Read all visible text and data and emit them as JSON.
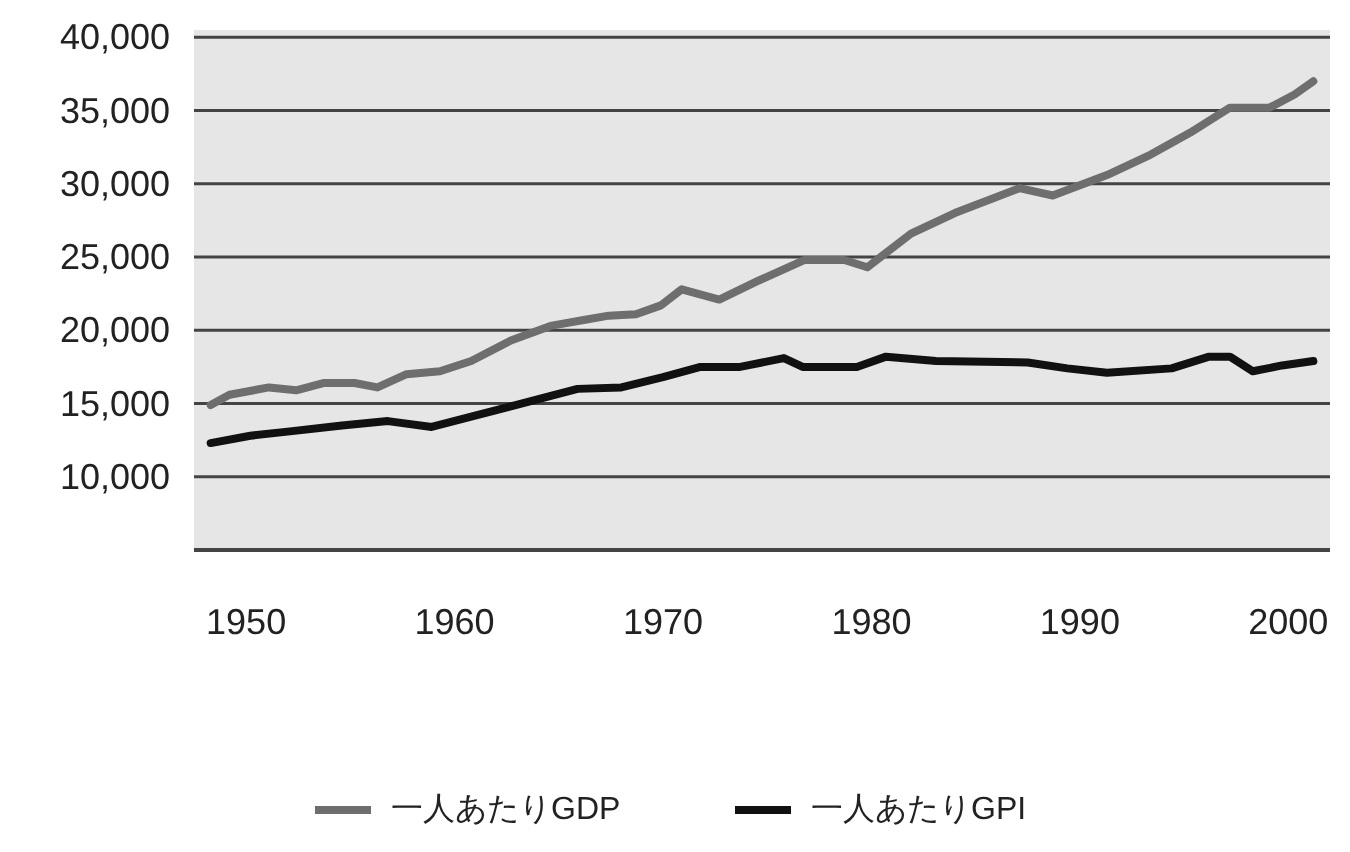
{
  "chart_data": {
    "type": "line",
    "xlim": [
      1947.5,
      2002
    ],
    "xticks": [
      1950,
      1960,
      1970,
      1980,
      1990,
      2000
    ],
    "ylim": [
      5000,
      40500
    ],
    "yticks": [
      {
        "value": 40000,
        "label": "40,000"
      },
      {
        "value": 35000,
        "label": "35,000"
      },
      {
        "value": 30000,
        "label": "30,000"
      },
      {
        "value": 25000,
        "label": "25,000"
      },
      {
        "value": 20000,
        "label": "20,000"
      },
      {
        "value": 15000,
        "label": "15,000"
      },
      {
        "value": 10000,
        "label": "10,000"
      }
    ],
    "grid": "y",
    "legend": "bottom",
    "marker": "none",
    "line_style": "solid",
    "series": [
      {
        "name": "一人あたりGDP",
        "color": "#6e6e6e",
        "x": [
          1948.3,
          1949.2,
          1951.1,
          1952.4,
          1953.7,
          1955.2,
          1956.3,
          1957.7,
          1959.3,
          1960.8,
          1962.7,
          1964.6,
          1966.2,
          1967.4,
          1968.7,
          1969.9,
          1970.9,
          1972.7,
          1974.6,
          1976.8,
          1978.7,
          1979.8,
          1981.9,
          1984.0,
          1987.1,
          1988.7,
          1991.3,
          1993.4,
          1995.3,
          1997.2,
          1999.1,
          2000.3,
          2001.2
        ],
        "values": [
          14900,
          15600,
          16100,
          15900,
          16400,
          16400,
          16100,
          17000,
          17200,
          17900,
          19300,
          20300,
          20700,
          21000,
          21100,
          21700,
          22800,
          22100,
          23400,
          24800,
          24800,
          24300,
          26600,
          28000,
          29700,
          29200,
          30600,
          32000,
          33500,
          35200,
          35200,
          36100,
          37000
        ]
      },
      {
        "name": "一人あたりGPI",
        "color": "#111111",
        "x": [
          1948.3,
          1950.2,
          1952.1,
          1954.6,
          1956.8,
          1958.9,
          1960.8,
          1962.7,
          1964.3,
          1965.9,
          1968.0,
          1970.0,
          1971.8,
          1973.7,
          1975.8,
          1976.7,
          1979.3,
          1980.7,
          1983.1,
          1987.5,
          1989.4,
          1991.3,
          1994.4,
          1996.2,
          1997.2,
          1998.3,
          1999.7,
          2001.2
        ],
        "values": [
          12300,
          12800,
          13100,
          13500,
          13800,
          13400,
          14100,
          14800,
          15400,
          16000,
          16100,
          16800,
          17500,
          17500,
          18100,
          17500,
          17500,
          18200,
          17900,
          17800,
          17400,
          17100,
          17400,
          18200,
          18200,
          17200,
          17600,
          17900
        ]
      }
    ]
  }
}
